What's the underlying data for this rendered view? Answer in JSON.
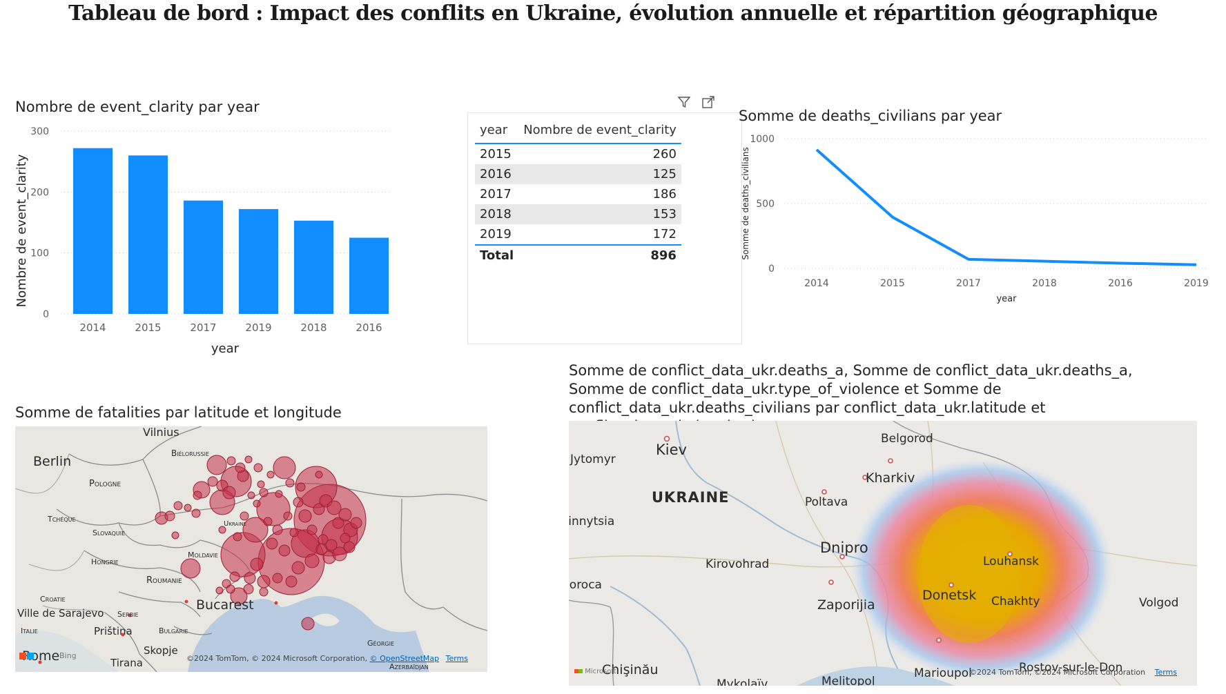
{
  "dashboard_title": "Tableau de bord : Impact des conflits en Ukraine, évolution annuelle et répartition géographique",
  "bar_visual": {
    "title": "Nombre de event_clarity par year",
    "chart_data": {
      "type": "bar",
      "categories": [
        "2014",
        "2015",
        "2017",
        "2019",
        "2018",
        "2016"
      ],
      "values": [
        272,
        260,
        186,
        172,
        153,
        125
      ],
      "xlabel": "year",
      "ylabel": "Nombre de event_clarity",
      "ylim": [
        0,
        300
      ],
      "yticks": [
        "0",
        "100",
        "200",
        "300"
      ],
      "color": "#118dff",
      "grid": true
    }
  },
  "table_visual": {
    "toolbar": {
      "filter_icon": "filter-icon",
      "focus_icon": "focus-mode-icon",
      "more_icon": "more-options-icon",
      "more_label": "···"
    },
    "headers": [
      "year",
      "Nombre de event_clarity"
    ],
    "rows": [
      [
        "2015",
        "260"
      ],
      [
        "2016",
        "125"
      ],
      [
        "2017",
        "186"
      ],
      [
        "2018",
        "153"
      ],
      [
        "2019",
        "172"
      ]
    ],
    "total": [
      "Total",
      "896"
    ]
  },
  "line_visual": {
    "title": "Somme de deaths_civilians par year",
    "chart_data": {
      "type": "line",
      "categories": [
        "2014",
        "2015",
        "2017",
        "2018",
        "2016",
        "2019"
      ],
      "values": [
        915,
        395,
        70,
        55,
        40,
        28
      ],
      "xlabel": "year",
      "ylabel": "Somme de deaths_civilians",
      "ylim": [
        0,
        1000
      ],
      "yticks": [
        "0",
        "500",
        "1000"
      ],
      "color": "#118dff",
      "grid": true
    }
  },
  "bubble_map": {
    "title": "Somme de fatalities par latitude et longitude",
    "labels": {
      "vilnius": "Vilnius",
      "bielorussie": "Biélorussie",
      "berlin": "Berlin",
      "pologne": "Pologne",
      "tcheque": "Tchéque",
      "slovaquie": "Slovaquie",
      "ukraine": "Ukraine",
      "hongrie": "Hongrie",
      "moldavie": "Moldavie",
      "roumanie": "Roumanie",
      "croatie": "Croatie",
      "sarajevo": "Ville de Sarajevo",
      "serbie": "Serbie",
      "italie": "Italie",
      "pristina": "Priština",
      "bulgarie": "Bulgarie",
      "bucarest": "Bucarest",
      "rome": "Rome",
      "skopje": "Skopje",
      "tirana": "Tirana",
      "georgie": "Géorgie",
      "azerbaidjan": "Azerbaïdjan",
      "bing": "Bing"
    },
    "attribution": "©2024 TomTom, © 2024 Microsoft Corporation,",
    "osm": "© OpenStreetMap",
    "terms": "Terms",
    "bubble_color": "#c4314b"
  },
  "heat_map": {
    "title": "Somme de conflict_data_ukr.deaths_a, Somme de conflict_data_ukr.deaths_a, Somme de conflict_data_ukr.type_of_violence et Somme de conflict_data_ukr.deaths_civilians par conflict_data_ukr.latitude et conflict_data_ukr.longitude",
    "labels": {
      "kiev": "Kiev",
      "jytomyr": "Jytomyr",
      "ukraine": "UKRAINE",
      "belgorod": "Belgorod",
      "kharkiv": "Kharkiv",
      "poltava": "Poltava",
      "vinnytsia": "Vinnytsia",
      "dnipro": "Dnipro",
      "kirovohrad": "Kirovohrad",
      "louhansk": "Louhansk",
      "donetsk": "Donetsk",
      "chakhty": "Chakhty",
      "volgod": "Volgod",
      "zaporijia": "Zaporijia",
      "soroca": "Soroca",
      "chisinau": "Chişinău",
      "melitopol": "Melitopol",
      "mykolaiv": "Mykolaïv",
      "marioupol": "Marioupol",
      "rostov": "Rostov-sur-le-Don",
      "microsoft": "Microsoft"
    },
    "attribution": "©2024 TomTom, ©2024 Microsoft Corporation",
    "terms": "Terms"
  }
}
